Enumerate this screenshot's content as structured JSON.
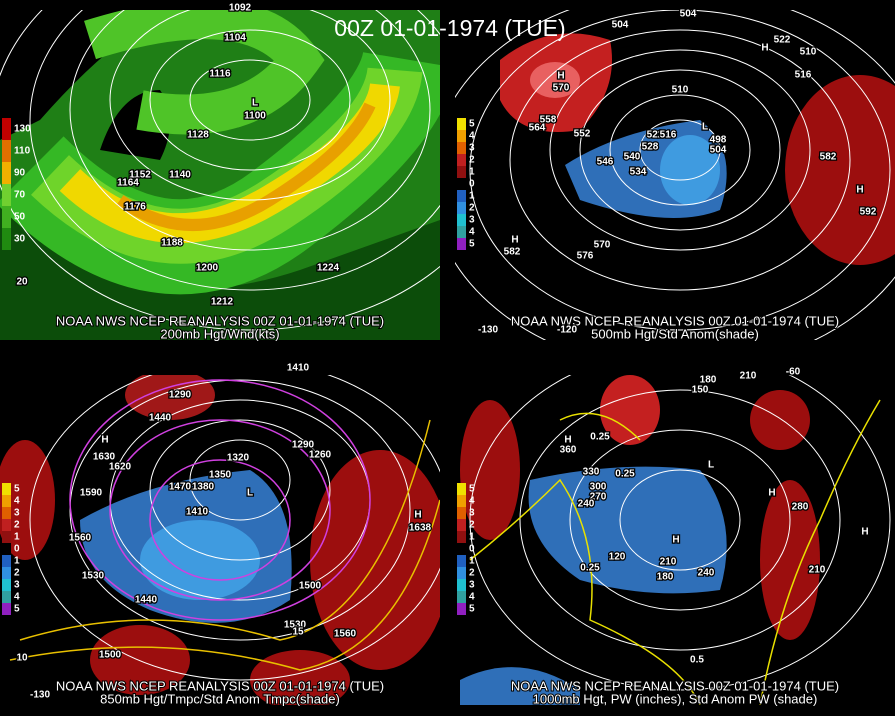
{
  "title": "00Z 01-01-1974 (TUE)",
  "panels": [
    {
      "source": "NOAA NWS NCEP REANALYSIS 00Z 01-01-1974 (TUE)",
      "caption": "200mb Hgt/Wnd(kts)",
      "colorbar": [
        "130",
        "110",
        "90",
        "70",
        "50",
        "30"
      ],
      "labels": [
        "1092",
        "1104",
        "1116",
        "L",
        "1100",
        "1128",
        "1140",
        "1152",
        "1164",
        "1176",
        "1188",
        "1200",
        "1212",
        "1224",
        "20"
      ]
    },
    {
      "source": "NOAA NWS NCEP REANALYSIS 00Z 01-01-1974 (TUE)",
      "caption": "500mb Hgt/Std Anom(shade)",
      "colorbar": [
        "5",
        "4",
        "3",
        "2",
        "1",
        "0",
        "1",
        "2",
        "3",
        "4",
        "5"
      ],
      "labels": [
        "504",
        "504",
        "522",
        "510",
        "516",
        "H",
        "H",
        "570",
        "510",
        "558",
        "564",
        "552",
        "522",
        "516",
        "528",
        "546",
        "540",
        "534",
        "L",
        "498",
        "504",
        "582",
        "H",
        "592",
        "H",
        "582",
        "570",
        "576",
        "-130",
        "-120"
      ]
    },
    {
      "source": "NOAA NWS NCEP REANALYSIS 00Z 01-01-1974 (TUE)",
      "caption": "850mb Hgt/Tmpc/Std Anom Tmpc(shade)",
      "colorbar": [
        "5",
        "4",
        "3",
        "2",
        "1",
        "0",
        "1",
        "2",
        "3",
        "4",
        "5"
      ],
      "labels": [
        "1410",
        "1290",
        "1440",
        "H",
        "1630",
        "1620",
        "1590",
        "1320",
        "1350",
        "1380",
        "1470",
        "L",
        "1410",
        "1560",
        "1530",
        "1440",
        "1500",
        "1530",
        "1560",
        "1500",
        "1290",
        "1260",
        "H",
        "1638",
        "10",
        "15",
        "-130"
      ]
    },
    {
      "source": "NOAA NWS NCEP REANALYSIS 00Z 01-01-1974 (TUE)",
      "caption": "1000mb Hgt, PW (inches), Std Anom PW (shade)",
      "colorbar": [
        "5",
        "4",
        "3",
        "2",
        "1",
        "0",
        "1",
        "2",
        "3",
        "4",
        "5"
      ],
      "labels": [
        "210",
        "-60",
        "180",
        "150",
        "H",
        "360",
        "0.25",
        "330",
        "0.25",
        "300",
        "270",
        "240",
        "L",
        "H",
        "H",
        "120",
        "210",
        "180",
        "240",
        "280",
        "210",
        "0.5",
        "0.25",
        "H"
      ]
    }
  ]
}
